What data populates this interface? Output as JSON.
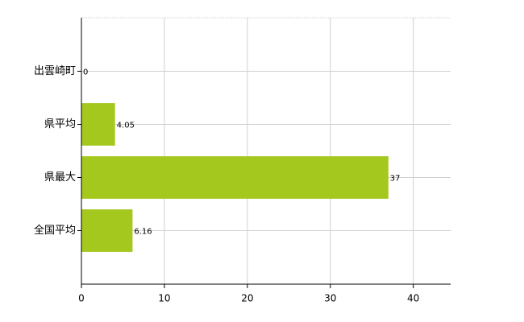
{
  "chart_data": {
    "type": "hbar",
    "categories": [
      "出雲崎町",
      "県平均",
      "県最大",
      "全国平均"
    ],
    "values": [
      0,
      4.05,
      37,
      6.16
    ],
    "color": "#a4c81e",
    "xlim": [
      0,
      44.5
    ],
    "xticks": [
      0,
      10,
      20,
      30,
      40
    ],
    "grid": true
  }
}
